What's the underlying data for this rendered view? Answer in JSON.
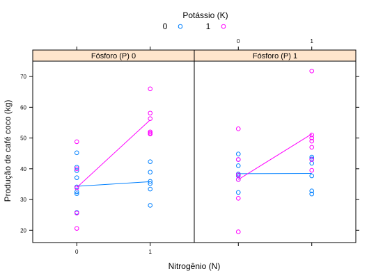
{
  "chart_data": {
    "type": "scatter",
    "xlabel": "Nitrogênio (N)",
    "ylabel": "Produção de café coco (kg)",
    "x_ticks": [
      "0",
      "1"
    ],
    "y_ticks": [
      20,
      30,
      40,
      50,
      60,
      70
    ],
    "ylim": [
      16,
      75
    ],
    "xlim": [
      -0.6,
      1.6
    ],
    "strip_color": "#ffe5cc",
    "legend": {
      "title": "Potássio (K)",
      "placement": "top",
      "entries": [
        {
          "label": "0",
          "color": "#0080ff"
        },
        {
          "label": "1",
          "color": "#ff00ff"
        }
      ]
    },
    "panels": [
      {
        "label": "Fósforo (P) 0",
        "series": [
          {
            "name": "0",
            "color": "#0080ff",
            "points": [
              [
                0,
                45.2
              ],
              [
                0,
                40.5
              ],
              [
                0,
                39.4
              ],
              [
                0,
                37.1
              ],
              [
                0,
                34.1
              ],
              [
                0,
                32.5
              ],
              [
                0,
                31.9
              ],
              [
                0,
                25.8
              ],
              [
                1,
                42.3
              ],
              [
                1,
                38.9
              ],
              [
                1,
                35.9
              ],
              [
                1,
                35.2
              ],
              [
                1,
                33.4
              ],
              [
                1,
                28.1
              ]
            ],
            "line": [
              [
                0,
                34.3
              ],
              [
                1,
                35.8
              ]
            ]
          },
          {
            "name": "1",
            "color": "#ff00ff",
            "points": [
              [
                0,
                48.8
              ],
              [
                0,
                40.0
              ],
              [
                0,
                33.8
              ],
              [
                0,
                25.6
              ],
              [
                0,
                20.6
              ],
              [
                1,
                66.0
              ],
              [
                1,
                58.1
              ],
              [
                1,
                56.3
              ],
              [
                1,
                52.0
              ],
              [
                1,
                51.6
              ],
              [
                1,
                51.3
              ]
            ],
            "line": [
              [
                0,
                33.9
              ],
              [
                1,
                55.9
              ]
            ]
          }
        ]
      },
      {
        "label": "Fósforo (P) 1",
        "series": [
          {
            "name": "0",
            "color": "#0080ff",
            "points": [
              [
                0,
                44.8
              ],
              [
                0,
                43.0
              ],
              [
                0,
                41.0
              ],
              [
                0,
                38.3
              ],
              [
                0,
                37.7
              ],
              [
                0,
                36.5
              ],
              [
                0,
                32.3
              ],
              [
                1,
                43.8
              ],
              [
                1,
                43.2
              ],
              [
                1,
                41.8
              ],
              [
                1,
                37.7
              ],
              [
                1,
                32.8
              ],
              [
                1,
                31.8
              ]
            ],
            "line": [
              [
                0,
                38.4
              ],
              [
                1,
                38.5
              ]
            ]
          },
          {
            "name": "1",
            "color": "#ff00ff",
            "points": [
              [
                0,
                53.0
              ],
              [
                0,
                43.0
              ],
              [
                0,
                38.0
              ],
              [
                0,
                36.5
              ],
              [
                0,
                30.4
              ],
              [
                0,
                19.5
              ],
              [
                1,
                71.8
              ],
              [
                1,
                51.0
              ],
              [
                1,
                50.0
              ],
              [
                1,
                49.0
              ],
              [
                1,
                47.0
              ],
              [
                1,
                43.0
              ],
              [
                1,
                39.5
              ]
            ],
            "line": [
              [
                0,
                36.5
              ],
              [
                1,
                51.3
              ]
            ]
          }
        ]
      }
    ]
  }
}
